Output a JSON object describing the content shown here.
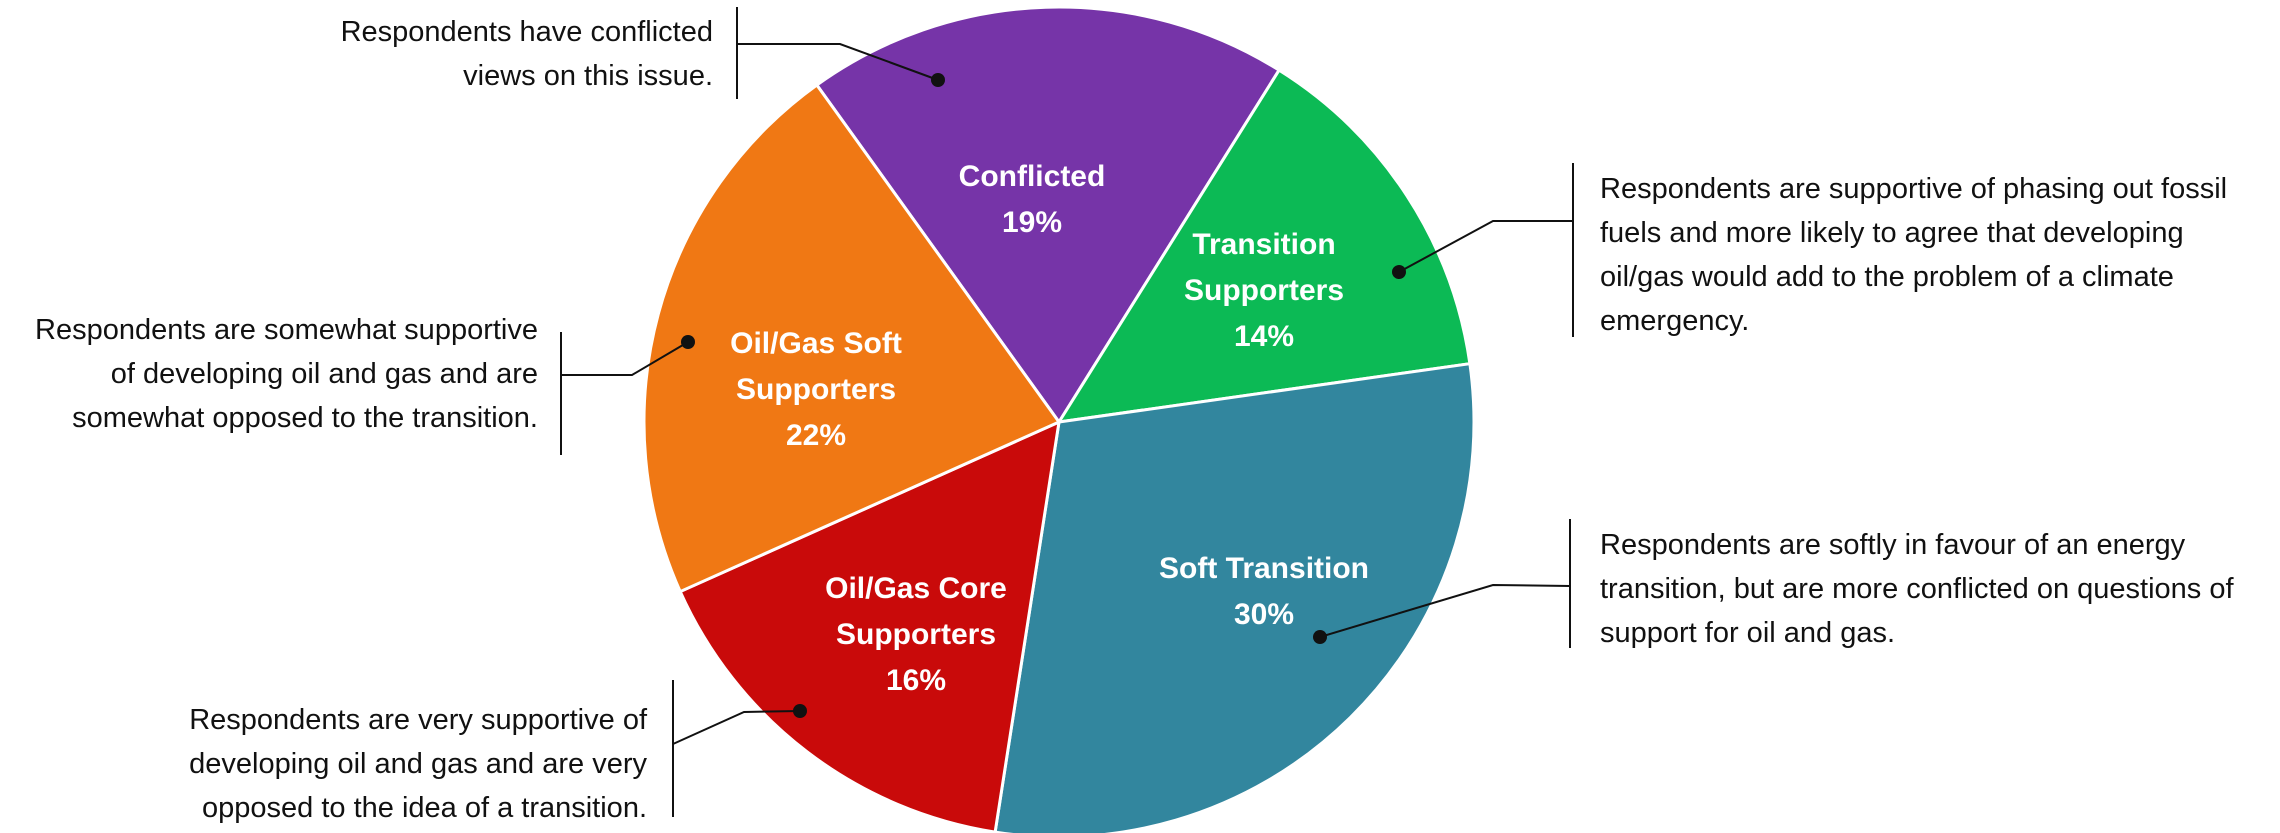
{
  "chart_data": {
    "type": "pie",
    "categories": [
      "Conflicted",
      "Transition Supporters",
      "Soft Transition",
      "Oil/Gas Core Supporters",
      "Oil/Gas Soft Supporters"
    ],
    "values": [
      19,
      14,
      30,
      16,
      22
    ],
    "value_labels": [
      "19%",
      "14%",
      "30%",
      "16%",
      "22%"
    ],
    "colors": [
      "#7634a8",
      "#0cba55",
      "#32869e",
      "#c90a0a",
      "#f07814"
    ],
    "descriptions": [
      "Respondents have conflicted views on this issue.",
      "Respondents are supportive of phasing out fossil fuels and more likely to agree that developing oil/gas would add to the problem of a climate emergency.",
      "Respondents are softly in favour of an energy transition, but are more conflicted on questions of support for oil and gas.",
      "Respondents are very supportive of developing oil and gas and are very opposed to the idea of a transition.",
      "Respondents are somewhat supportive of developing oil and gas and are somewhat opposed to the transition."
    ]
  }
}
